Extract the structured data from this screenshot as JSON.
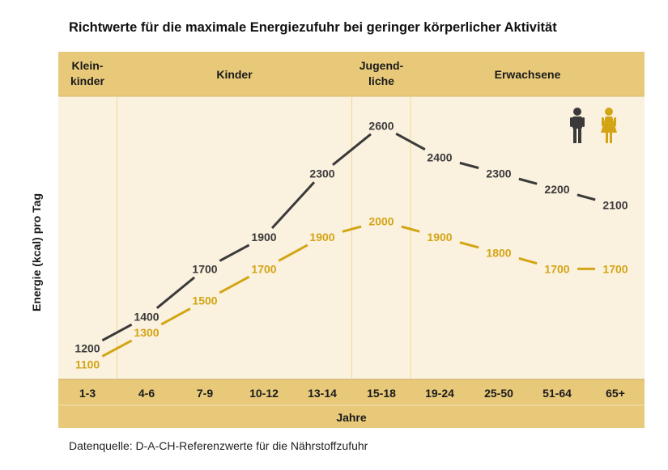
{
  "title": "Richtwerte für die maximale Energiezufuhr bei geringer körperlicher Aktivität",
  "source": "Datenquelle: D-A-CH-Referenzwerte für die Nährstoffzufuhr",
  "colors": {
    "band": "#e8c97a",
    "plot_bg": "#fbf1df",
    "male": "#3a3a3a",
    "female": "#d3a514",
    "divider": "#f0d99a"
  },
  "age_groups": [
    {
      "label": [
        "Klein-",
        "kinder"
      ],
      "from": 0,
      "to": 0
    },
    {
      "label": [
        "Kinder"
      ],
      "from": 1,
      "to": 4
    },
    {
      "label": [
        "Jugend-",
        "liche"
      ],
      "from": 5,
      "to": 5
    },
    {
      "label": [
        "Erwachsene"
      ],
      "from": 6,
      "to": 9
    }
  ],
  "legend_icons": [
    "male-icon",
    "female-icon"
  ],
  "chart_data": {
    "type": "line",
    "title": "Richtwerte für die maximale Energiezufuhr bei geringer körperlicher Aktivität",
    "xlabel": "Jahre",
    "ylabel": "Energie (kcal) pro Tag",
    "categories": [
      "1-3",
      "4-6",
      "7-9",
      "10-12",
      "13-14",
      "15-18",
      "19-24",
      "25-50",
      "51-64",
      "65+"
    ],
    "series": [
      {
        "values": [
          1200,
          1400,
          1700,
          1900,
          2300,
          2600,
          2400,
          2300,
          2200,
          2100
        ],
        "color": "#3a3a3a"
      },
      {
        "values": [
          1100,
          1300,
          1500,
          1700,
          1900,
          2000,
          1900,
          1800,
          1700,
          1700
        ],
        "color": "#d3a514"
      }
    ],
    "ylim": [
      1000,
      2800
    ],
    "grid": false,
    "legend": "top-right"
  }
}
